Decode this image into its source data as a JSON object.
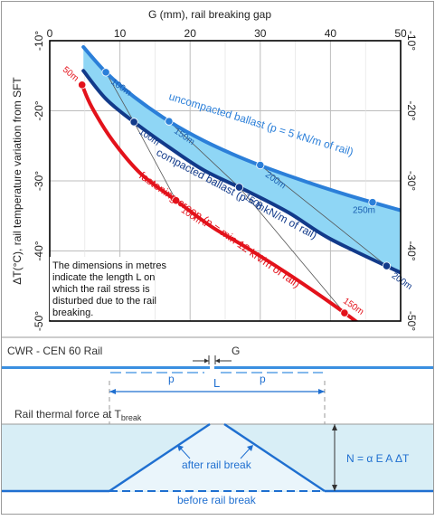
{
  "chart_data": {
    "type": "line",
    "title": "G (mm), rail breaking gap",
    "xlabel": "G (mm), rail breaking gap",
    "ylabel": "ΔT(°C), rail temperature variation from SFT",
    "xlim": [
      0,
      50
    ],
    "ylim": [
      -50,
      -10
    ],
    "x_ticks": [
      "0",
      "10",
      "20",
      "30",
      "40",
      "50"
    ],
    "y_ticks": [
      "-10°",
      "-20°",
      "-30°",
      "-40°",
      "-50°"
    ],
    "series": [
      {
        "name": "uncompacted ballast (p = 5 kN/m of rail)",
        "color": "#2b7fd9",
        "x": [
          4.8,
          8,
          12,
          17,
          22,
          28,
          35,
          42,
          50
        ],
        "y": [
          -10.9,
          -14.5,
          -18.0,
          -21.5,
          -24.3,
          -27.0,
          -29.6,
          -31.9,
          -34.2
        ]
      },
      {
        "name": "compacted ballast (p = 8 kN/m of rail)",
        "color": "#123a8a",
        "x": [
          4.8,
          8,
          12,
          17,
          22,
          28,
          34,
          40,
          50
        ],
        "y": [
          -14.3,
          -18.3,
          -21.6,
          -25.2,
          -28.5,
          -31.4,
          -34.5,
          -38.3,
          -43.1
        ]
      },
      {
        "name": "fastening creep (p = min 12 kN/m of rail)",
        "color": "#e3121b",
        "x": [
          4.6,
          6,
          9,
          13,
          18,
          23,
          28,
          34,
          40,
          44
        ],
        "y": [
          -16.3,
          -19.5,
          -24.3,
          -29.0,
          -32.8,
          -36.5,
          -39.5,
          -43.3,
          -47.4,
          -50.3
        ]
      }
    ],
    "band_fill": "#8fd6f5",
    "grid": true,
    "length_labels": [
      {
        "text": "100m",
        "series": 0,
        "x": 8
      },
      {
        "text": "150m",
        "series": 0,
        "x": 17
      },
      {
        "text": "200m",
        "series": 0,
        "x": 30
      },
      {
        "text": "250m",
        "series": 0,
        "x": 46
      },
      {
        "text": "100m",
        "series": 1,
        "x": 12
      },
      {
        "text": "150m",
        "series": 1,
        "x": 27
      },
      {
        "text": "200m",
        "series": 1,
        "x": 48
      },
      {
        "text": "50m",
        "series": 2,
        "x": 4.6
      },
      {
        "text": "100m",
        "series": 2,
        "x": 18
      },
      {
        "text": "150m",
        "series": 2,
        "x": 42
      }
    ],
    "annotation": [
      "The dimensions in metres",
      "indicate the length L on",
      "which the rail stress is",
      "disturbed due to the rail",
      "breaking."
    ]
  },
  "diagram": {
    "rail_title": "CWR - CEN 60 Rail",
    "gap_label": "G",
    "p_label": "p",
    "length_label": "L",
    "thermal_title": "Rail thermal force at T",
    "thermal_sub": "break",
    "after_label": "after rail break",
    "before_label": "before rail break",
    "formula": "N = α E A ΔT",
    "colors": {
      "rail": "#3a8fe0",
      "band": "#d8eef6",
      "line": "#1f6fd0",
      "frame": "#808080"
    }
  }
}
